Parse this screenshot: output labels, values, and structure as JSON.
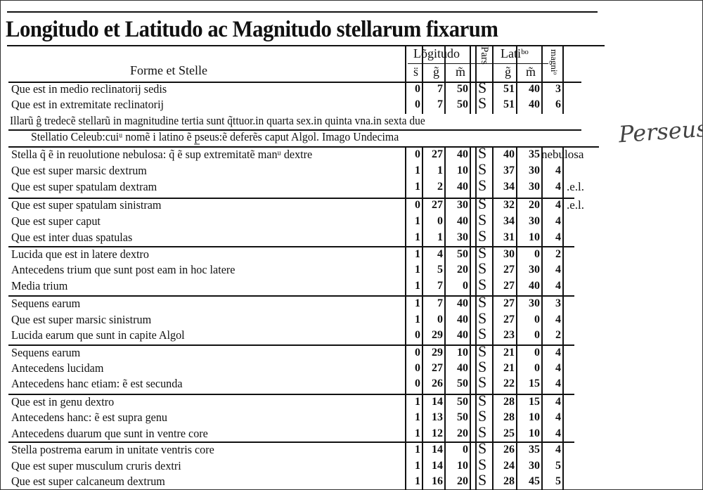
{
  "title": "Longitudo et Latitudo ac Magnitudo stellarum fixarum",
  "header": {
    "forms": "Forme et Stelle",
    "longitudo": "Lõgitudo",
    "pars": "Pars",
    "latitudo": "Latiᵇᵒ",
    "magnitudo": "magniᵒ",
    "col_s": "s̈",
    "col_g": "g̃",
    "col_m": "m̃",
    "col_lg": "g̃",
    "col_lm": "m̃"
  },
  "group1": [
    {
      "text": "Que est in medio reclinatorij sedis",
      "s": "0",
      "g": "7",
      "m": "50",
      "p": "S",
      "lg": "51",
      "lm": "40",
      "mag": "3",
      "extra": ""
    },
    {
      "text": "Que est in extremitate reclinatorij",
      "s": "0",
      "g": "7",
      "m": "50",
      "p": "S",
      "lg": "51",
      "lm": "40",
      "mag": "6",
      "extra": ""
    }
  ],
  "note": "Illarũ ĝ tredecẽ stellarũ in magnitudine tertia sunt q̃ttuor.in quarta sex.in quinta vna.in sexta due",
  "section": "Stellatio Celeub:cuiᵘ nomẽ i latino ẽ p̲seus:ẽ deferẽs caput Algol.  Imago Undecima",
  "handwritten": "Perseus",
  "rows": [
    {
      "text": "Stella q̃ ẽ in reuolutione nebulosa: q̃ ẽ sup extremitatẽ manᵘ dextre",
      "s": "0",
      "g": "27",
      "m": "40",
      "p": "S",
      "lg": "40",
      "lm": "35",
      "mag": "nebulosa",
      "extra": ""
    },
    {
      "text": "Que est super marsic dextrum",
      "s": "1",
      "g": "1",
      "m": "10",
      "p": "S",
      "lg": "37",
      "lm": "30",
      "mag": "4",
      "extra": ""
    },
    {
      "text": "Que est super spatulam dextram",
      "s": "1",
      "g": "2",
      "m": "40",
      "p": "S",
      "lg": "34",
      "lm": "30",
      "mag": "4",
      "extra": ".e.l."
    },
    {
      "text": "Que est super spatulam sinistram",
      "s": "0",
      "g": "27",
      "m": "30",
      "p": "S",
      "lg": "32",
      "lm": "20",
      "mag": "4",
      "extra": ".e.l."
    },
    {
      "text": "Que est super caput",
      "s": "1",
      "g": "0",
      "m": "40",
      "p": "S",
      "lg": "34",
      "lm": "30",
      "mag": "4",
      "extra": ""
    },
    {
      "text": "Que est inter duas spatulas",
      "s": "1",
      "g": "1",
      "m": "30",
      "p": "S",
      "lg": "31",
      "lm": "10",
      "mag": "4",
      "extra": ""
    },
    {
      "text": "Lucida que est in latere dextro",
      "s": "1",
      "g": "4",
      "m": "50",
      "p": "S",
      "lg": "30",
      "lm": "0",
      "mag": "2",
      "extra": ""
    },
    {
      "text": "Antecedens trium que sunt post eam in hoc latere",
      "s": "1",
      "g": "5",
      "m": "20",
      "p": "S",
      "lg": "27",
      "lm": "30",
      "mag": "4",
      "extra": ""
    },
    {
      "text": "Media trium",
      "s": "1",
      "g": "7",
      "m": "0",
      "p": "S",
      "lg": "27",
      "lm": "40",
      "mag": "4",
      "extra": ""
    },
    {
      "text": "Sequens earum",
      "s": "1",
      "g": "7",
      "m": "40",
      "p": "S",
      "lg": "27",
      "lm": "30",
      "mag": "3",
      "extra": ""
    },
    {
      "text": "Que est super marsic sinistrum",
      "s": "1",
      "g": "0",
      "m": "40",
      "p": "S",
      "lg": "27",
      "lm": "0",
      "mag": "4",
      "extra": ""
    },
    {
      "text": "Lucida earum que sunt in capite Algol",
      "s": "0",
      "g": "29",
      "m": "40",
      "p": "S",
      "lg": "23",
      "lm": "0",
      "mag": "2",
      "extra": ""
    },
    {
      "text": "Sequens earum",
      "s": "0",
      "g": "29",
      "m": "10",
      "p": "S",
      "lg": "21",
      "lm": "0",
      "mag": "4",
      "extra": ""
    },
    {
      "text": "Antecedens lucidam",
      "s": "0",
      "g": "27",
      "m": "40",
      "p": "S",
      "lg": "21",
      "lm": "0",
      "mag": "4",
      "extra": ""
    },
    {
      "text": "Antecedens hanc etiam: ẽ est secunda",
      "s": "0",
      "g": "26",
      "m": "50",
      "p": "S",
      "lg": "22",
      "lm": "15",
      "mag": "4",
      "extra": ""
    },
    {
      "text": "Que est in genu dextro",
      "s": "1",
      "g": "14",
      "m": "50",
      "p": "S",
      "lg": "28",
      "lm": "15",
      "mag": "4",
      "extra": ""
    },
    {
      "text": "Antecedens hanc: ẽ est supra genu",
      "s": "1",
      "g": "13",
      "m": "50",
      "p": "S",
      "lg": "28",
      "lm": "10",
      "mag": "4",
      "extra": ""
    },
    {
      "text": "Antecedens duarum que sunt in ventre core",
      "s": "1",
      "g": "12",
      "m": "20",
      "p": "S",
      "lg": "25",
      "lm": "10",
      "mag": "4",
      "extra": ""
    },
    {
      "text": "Stella postrema earum in unitate ventris core",
      "s": "1",
      "g": "14",
      "m": "0",
      "p": "S",
      "lg": "26",
      "lm": "35",
      "mag": "4",
      "extra": ""
    },
    {
      "text": "Que est super musculum cruris dextri",
      "s": "1",
      "g": "14",
      "m": "10",
      "p": "S",
      "lg": "24",
      "lm": "30",
      "mag": "5",
      "extra": ""
    },
    {
      "text": "Que est super calcaneum dextrum",
      "s": "1",
      "g": "16",
      "m": "20",
      "p": "S",
      "lg": "28",
      "lm": "45",
      "mag": "5",
      "extra": ""
    }
  ]
}
